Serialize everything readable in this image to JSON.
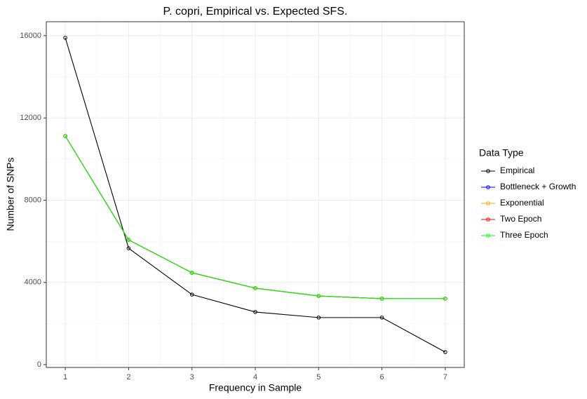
{
  "chart_data": {
    "type": "line",
    "title": "P. copri, Empirical vs. Expected SFS.",
    "x_label": "Frequency in Sample",
    "y_label": "Number of SNPs",
    "legend_title": "Data Type",
    "legend_position": "right",
    "x": [
      1,
      2,
      3,
      4,
      5,
      6,
      7
    ],
    "series": [
      {
        "name": "Empirical",
        "color": "#000000",
        "values": [
          15900,
          5660,
          3410,
          2560,
          2290,
          2290,
          610
        ]
      },
      {
        "name": "Bottleneck + Growth",
        "color": "#0000ff",
        "values": [
          11120,
          6070,
          4470,
          3720,
          3340,
          3210,
          3210
        ]
      },
      {
        "name": "Exponential",
        "color": "#ffa500",
        "values": [
          11120,
          6070,
          4470,
          3720,
          3340,
          3210,
          3210
        ]
      },
      {
        "name": "Two Epoch",
        "color": "#ff0000",
        "values": [
          11120,
          6070,
          4470,
          3720,
          3340,
          3210,
          3210
        ]
      },
      {
        "name": "Three Epoch",
        "color": "#00ff00",
        "values": [
          11120,
          6070,
          4470,
          3720,
          3340,
          3210,
          3210
        ]
      }
    ],
    "xlim": [
      0.7,
      7.3
    ],
    "ylim": [
      -136,
      16680
    ],
    "xticks": [
      1,
      2,
      3,
      4,
      5,
      6,
      7
    ],
    "yticks": [
      0,
      4000,
      8000,
      12000,
      16000
    ],
    "x_minor_ticks": [
      1.5,
      2.5,
      3.5,
      4.5,
      5.5,
      6.5
    ],
    "y_minor_ticks": [
      2000,
      6000,
      10000,
      14000
    ],
    "grid": true
  }
}
